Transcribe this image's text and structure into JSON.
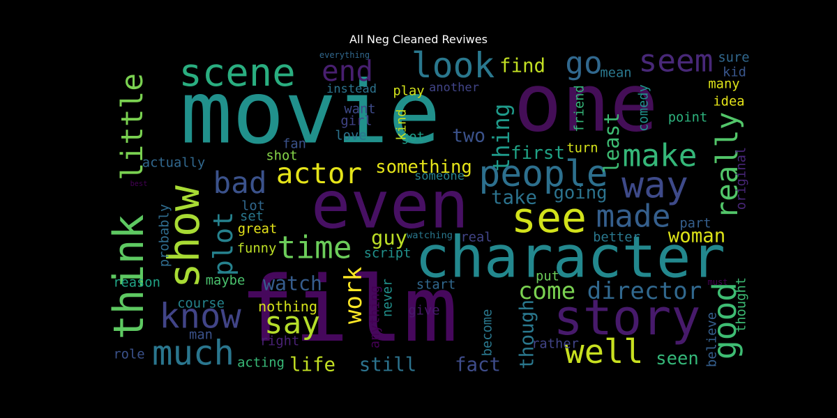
{
  "title": "All Neg Cleaned Reviwes",
  "words": [
    {
      "text": "movie",
      "color": "#21918c"
    },
    {
      "text": "one",
      "color": "#440e57"
    },
    {
      "text": "film",
      "color": "#46085c"
    },
    {
      "text": "even",
      "color": "#471063"
    },
    {
      "text": "character",
      "color": "#23888e"
    },
    {
      "text": "story",
      "color": "#471a6b"
    },
    {
      "text": "scene",
      "color": "#2aae80"
    },
    {
      "text": "show",
      "color": "#a8db34"
    },
    {
      "text": "think",
      "color": "#5ec962"
    },
    {
      "text": "see",
      "color": "#d2e21b"
    },
    {
      "text": "way",
      "color": "#3e4a89"
    },
    {
      "text": "people",
      "color": "#2d708e"
    },
    {
      "text": "seem",
      "color": "#482878"
    },
    {
      "text": "look",
      "color": "#2a788e"
    },
    {
      "text": "really",
      "color": "#52c569"
    },
    {
      "text": "good",
      "color": "#3ebc73"
    },
    {
      "text": "well",
      "color": "#c8e020"
    },
    {
      "text": "know",
      "color": "#414487"
    },
    {
      "text": "much",
      "color": "#2a768e"
    },
    {
      "text": "plot",
      "color": "#26828e"
    },
    {
      "text": "time",
      "color": "#6ccd5a"
    },
    {
      "text": "made",
      "color": "#355f8d"
    },
    {
      "text": "make",
      "color": "#35b779"
    },
    {
      "text": "actor",
      "color": "#e5e419"
    },
    {
      "text": "go",
      "color": "#31688e"
    },
    {
      "text": "end",
      "color": "#481f70"
    },
    {
      "text": "little",
      "color": "#7ad151"
    },
    {
      "text": "bad",
      "color": "#3b528b"
    },
    {
      "text": "say",
      "color": "#b5de2b"
    },
    {
      "text": "work",
      "color": "#fde725"
    },
    {
      "text": "director",
      "color": "#31688e"
    },
    {
      "text": "come",
      "color": "#7ad151"
    },
    {
      "text": "thing",
      "color": "#1f9a8a"
    },
    {
      "text": "first",
      "color": "#20a386"
    },
    {
      "text": "find",
      "color": "#c2df23"
    },
    {
      "text": "two",
      "color": "#3b528b"
    },
    {
      "text": "something",
      "color": "#e5e419"
    },
    {
      "text": "take",
      "color": "#2c738e"
    },
    {
      "text": "going",
      "color": "#2c738e"
    },
    {
      "text": "least",
      "color": "#3ebc73"
    },
    {
      "text": "woman",
      "color": "#dde318"
    },
    {
      "text": "life",
      "color": "#c2df23"
    },
    {
      "text": "still",
      "color": "#2c738e"
    },
    {
      "text": "fact",
      "color": "#3e4c8a"
    },
    {
      "text": "seen",
      "color": "#35b779"
    },
    {
      "text": "though",
      "color": "#2a788e"
    },
    {
      "text": "watch",
      "color": "#365d8d"
    },
    {
      "text": "guy",
      "color": "#bddf26"
    },
    {
      "text": "anything",
      "color": "#440154"
    },
    {
      "text": "never",
      "color": "#21918c"
    },
    {
      "text": "become",
      "color": "#2a788e"
    },
    {
      "text": "rather",
      "color": "#414487"
    },
    {
      "text": "believe",
      "color": "#355f8d"
    },
    {
      "text": "thought",
      "color": "#3dbc74"
    },
    {
      "text": "nothing",
      "color": "#d5e21a"
    },
    {
      "text": "course",
      "color": "#25848e"
    },
    {
      "text": "maybe",
      "color": "#4ac16d"
    },
    {
      "text": "reason",
      "color": "#20a386"
    },
    {
      "text": "man",
      "color": "#3b528b"
    },
    {
      "text": "right",
      "color": "#482173"
    },
    {
      "text": "role",
      "color": "#3b528b"
    },
    {
      "text": "acting",
      "color": "#38b977"
    },
    {
      "text": "funny",
      "color": "#bddf26"
    },
    {
      "text": "great",
      "color": "#e5e419"
    },
    {
      "text": "set",
      "color": "#2a788e"
    },
    {
      "text": "lot",
      "color": "#31688e"
    },
    {
      "text": "script",
      "color": "#21918c"
    },
    {
      "text": "start",
      "color": "#31688e"
    },
    {
      "text": "give",
      "color": "#481a6c"
    },
    {
      "text": "put",
      "color": "#6ccd5a"
    },
    {
      "text": "better",
      "color": "#2a788e"
    },
    {
      "text": "part",
      "color": "#355f8d"
    },
    {
      "text": "real",
      "color": "#414487"
    },
    {
      "text": "watching",
      "color": "#2a788e"
    },
    {
      "text": "must",
      "color": "#440154"
    },
    {
      "text": "probably",
      "color": "#2f6c8e"
    },
    {
      "text": "actually",
      "color": "#31688e"
    },
    {
      "text": "shot",
      "color": "#86d549"
    },
    {
      "text": "fan",
      "color": "#3b528b"
    },
    {
      "text": "love",
      "color": "#2c738e"
    },
    {
      "text": "girl",
      "color": "#414487"
    },
    {
      "text": "got",
      "color": "#1f9e89"
    },
    {
      "text": "want",
      "color": "#3e4a89"
    },
    {
      "text": "kind",
      "color": "#c8e020"
    },
    {
      "text": "instead",
      "color": "#2c738e"
    },
    {
      "text": "play",
      "color": "#d2e21b"
    },
    {
      "text": "another",
      "color": "#414487"
    },
    {
      "text": "everything",
      "color": "#31688e"
    },
    {
      "text": "mean",
      "color": "#2a788e"
    },
    {
      "text": "sure",
      "color": "#31688e"
    },
    {
      "text": "kid",
      "color": "#39568c"
    },
    {
      "text": "many",
      "color": "#dde318"
    },
    {
      "text": "idea",
      "color": "#e5e419"
    },
    {
      "text": "comedy",
      "color": "#21918c"
    },
    {
      "text": "friend",
      "color": "#35b779"
    },
    {
      "text": "point",
      "color": "#2db27d"
    },
    {
      "text": "turn",
      "color": "#d5e21a"
    },
    {
      "text": "someone",
      "color": "#26828e"
    },
    {
      "text": "best",
      "color": "#440154"
    },
    {
      "text": "original",
      "color": "#482677"
    }
  ]
}
